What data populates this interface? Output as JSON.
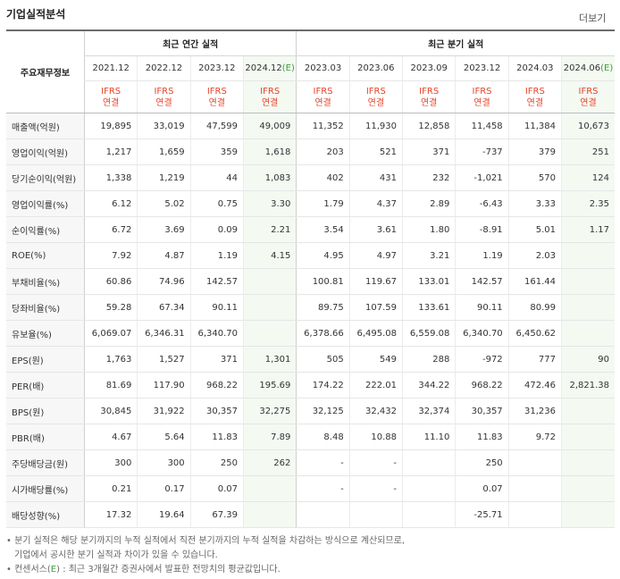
{
  "header": {
    "title": "기업실적분석",
    "more_label": "더보기"
  },
  "table": {
    "key_header": "주요재무정보",
    "annual_group": "최근 연간 실적",
    "quarter_group": "최근 분기 실적",
    "annual_periods": [
      "2021.12",
      "2022.12",
      "2023.12",
      "2024.12(E)"
    ],
    "quarter_periods": [
      "2023.03",
      "2023.06",
      "2023.09",
      "2023.12",
      "2024.03",
      "2024.06(E)"
    ],
    "ifrs_line1": "IFRS",
    "ifrs_line2": "연결",
    "rows": [
      {
        "label": "매출액(억원)",
        "values": [
          "19,895",
          "33,019",
          "47,599",
          "49,009",
          "11,352",
          "11,930",
          "12,858",
          "11,458",
          "11,384",
          "10,673"
        ]
      },
      {
        "label": "영업이익(억원)",
        "values": [
          "1,217",
          "1,659",
          "359",
          "1,618",
          "203",
          "521",
          "371",
          "-737",
          "379",
          "251"
        ]
      },
      {
        "label": "당기순이익(억원)",
        "values": [
          "1,338",
          "1,219",
          "44",
          "1,083",
          "402",
          "431",
          "232",
          "-1,021",
          "570",
          "124"
        ]
      },
      {
        "label": "영업이익률(%)",
        "values": [
          "6.12",
          "5.02",
          "0.75",
          "3.30",
          "1.79",
          "4.37",
          "2.89",
          "-6.43",
          "3.33",
          "2.35"
        ]
      },
      {
        "label": "순이익률(%)",
        "values": [
          "6.72",
          "3.69",
          "0.09",
          "2.21",
          "3.54",
          "3.61",
          "1.80",
          "-8.91",
          "5.01",
          "1.17"
        ]
      },
      {
        "label": "ROE(%)",
        "values": [
          "7.92",
          "4.87",
          "1.19",
          "4.15",
          "4.95",
          "4.97",
          "3.21",
          "1.19",
          "2.03",
          ""
        ]
      },
      {
        "label": "부채비율(%)",
        "values": [
          "60.86",
          "74.96",
          "142.57",
          "",
          "100.81",
          "119.67",
          "133.01",
          "142.57",
          "161.44",
          ""
        ]
      },
      {
        "label": "당좌비율(%)",
        "values": [
          "59.28",
          "67.34",
          "90.11",
          "",
          "89.75",
          "107.59",
          "133.61",
          "90.11",
          "80.99",
          ""
        ]
      },
      {
        "label": "유보율(%)",
        "values": [
          "6,069.07",
          "6,346.31",
          "6,340.70",
          "",
          "6,378.66",
          "6,495.08",
          "6,559.08",
          "6,340.70",
          "6,450.62",
          ""
        ]
      },
      {
        "label": "EPS(원)",
        "values": [
          "1,763",
          "1,527",
          "371",
          "1,301",
          "505",
          "549",
          "288",
          "-972",
          "777",
          "90"
        ]
      },
      {
        "label": "PER(배)",
        "values": [
          "81.69",
          "117.90",
          "968.22",
          "195.69",
          "174.22",
          "222.01",
          "344.22",
          "968.22",
          "472.46",
          "2,821.38"
        ]
      },
      {
        "label": "BPS(원)",
        "values": [
          "30,845",
          "31,922",
          "30,357",
          "32,275",
          "32,125",
          "32,432",
          "32,374",
          "30,357",
          "31,236",
          ""
        ]
      },
      {
        "label": "PBR(배)",
        "values": [
          "4.67",
          "5.64",
          "11.83",
          "7.89",
          "8.48",
          "10.88",
          "11.10",
          "11.83",
          "9.72",
          ""
        ]
      },
      {
        "label": "주당배당금(원)",
        "values": [
          "300",
          "300",
          "250",
          "262",
          "-",
          "-",
          "",
          "250",
          "",
          ""
        ]
      },
      {
        "label": "시가배당률(%)",
        "values": [
          "0.21",
          "0.17",
          "0.07",
          "",
          "-",
          "-",
          "",
          "0.07",
          "",
          ""
        ]
      },
      {
        "label": "배당성향(%)",
        "values": [
          "17.32",
          "19.64",
          "67.39",
          "",
          "",
          "",
          "",
          "-25.71",
          "",
          ""
        ]
      }
    ]
  },
  "notes": {
    "line1": "• 분기 실적은 해당 분기까지의 누적 실적에서 직전 분기까지의 누적 실적을 차감하는 방식으로 계산되므로,",
    "line2": "기업에서 공시한 분기 실적과 차이가 있을 수 있습니다.",
    "line3_prefix": "• 컨센서스(",
    "line3_mark": "E",
    "line3_suffix": ") : 최근 3개월간 증권사에서 발표한 전망치의 평균값입니다."
  },
  "colors": {
    "negative": "#e5452b",
    "estimate_bg": "#f4f9f2",
    "ifrs": "#e5452b"
  }
}
